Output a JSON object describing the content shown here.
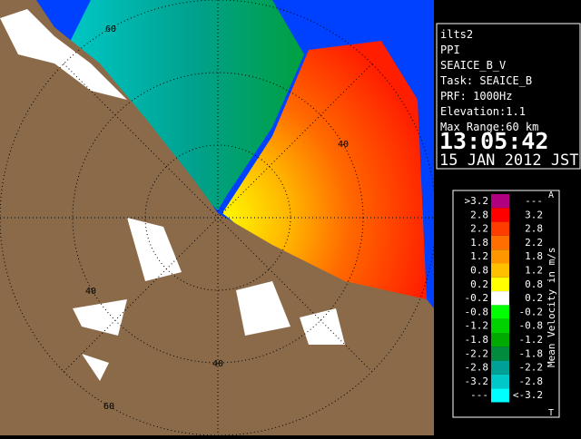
{
  "info": {
    "lines": [
      "ilts2",
      "PPI",
      "SEAICE_B_V",
      "Task: SEAICE_B",
      "PRF: 1000Hz",
      "Elevation:1.1",
      "Max Range:60 km"
    ],
    "time": "13:05:42",
    "date": "15 JAN 2012 JST"
  },
  "legend": {
    "title": "Mean Velocity in m/s",
    "top_mark": "A",
    "bottom_mark": "T",
    "rows": [
      {
        "low": ">3.2",
        "high": "---",
        "color": "#b0007f"
      },
      {
        "low": "2.8",
        "high": "3.2",
        "color": "#ff0000"
      },
      {
        "low": "2.2",
        "high": "2.8",
        "color": "#ff3c00"
      },
      {
        "low": "1.8",
        "high": "2.2",
        "color": "#ff6e00"
      },
      {
        "low": "1.2",
        "high": "1.8",
        "color": "#ff9600"
      },
      {
        "low": "0.8",
        "high": "1.2",
        "color": "#ffc000"
      },
      {
        "low": "0.2",
        "high": "0.8",
        "color": "#ffff00"
      },
      {
        "low": "-0.2",
        "high": "0.2",
        "color": "#ffffff"
      },
      {
        "low": "-0.8",
        "high": "-0.2",
        "color": "#00ff00"
      },
      {
        "low": "-1.2",
        "high": "-0.8",
        "color": "#00d200"
      },
      {
        "low": "-1.8",
        "high": "-1.2",
        "color": "#00aa00"
      },
      {
        "low": "-2.2",
        "high": "-1.8",
        "color": "#008c3c"
      },
      {
        "low": "-2.8",
        "high": "-2.2",
        "color": "#00a096"
      },
      {
        "low": "-3.2",
        "high": "-2.8",
        "color": "#00c8c8"
      },
      {
        "low": "---",
        "high": "<-3.2",
        "color": "#00ffff"
      }
    ]
  },
  "map": {
    "range_labels": [
      "60",
      "40",
      "40",
      "40",
      "60"
    ]
  }
}
